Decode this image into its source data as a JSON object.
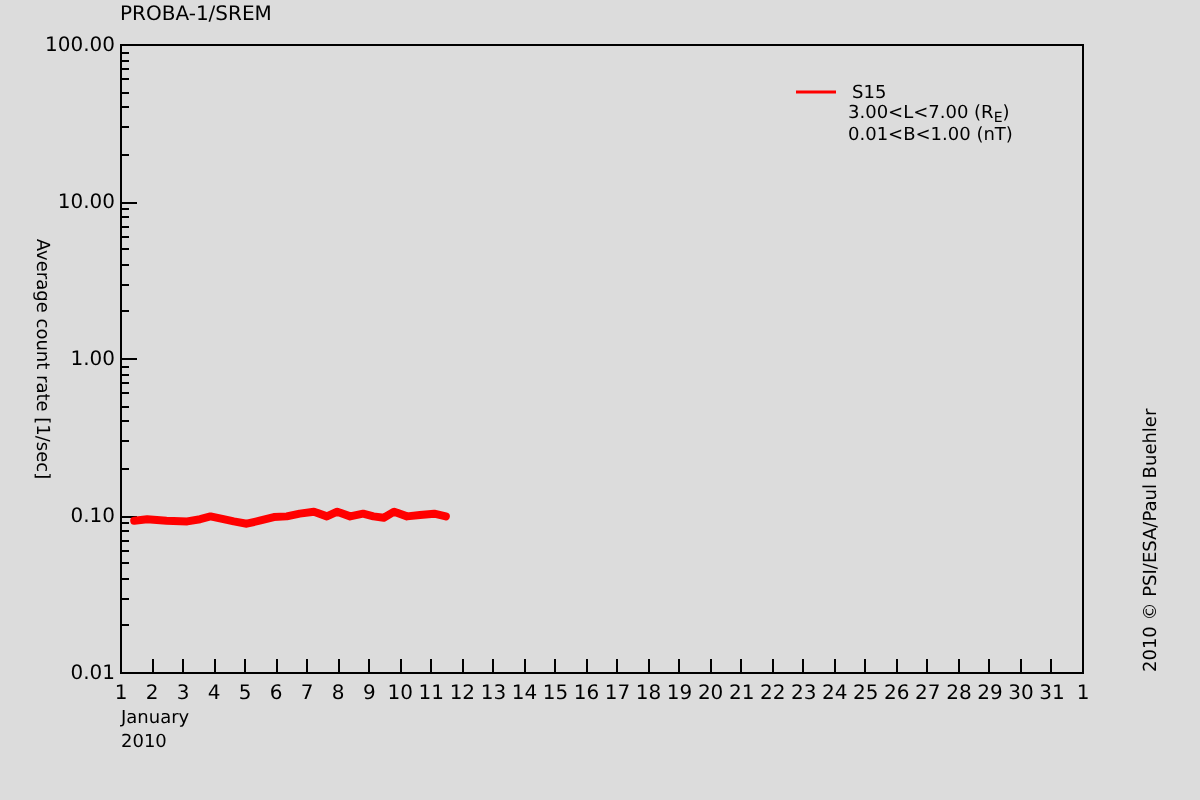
{
  "chart_data": {
    "type": "line",
    "title": "PROBA-1/SREM",
    "xlabel": "January\n2010",
    "ylabel": "Average count rate [1/sec]",
    "annotations": [
      "3.00<L<7.00 (R$_{E}$)",
      "0.01<B<1.00 (nT)",
      "2010 © PSI/ESA/Paul Buehler"
    ],
    "x": [
      "2010-01-01T11:00",
      "2010-01-01T21:00",
      "2010-01-02T12:00",
      "2010-01-03T04:00",
      "2010-01-03T14:00",
      "2010-01-03T22:00",
      "2010-01-04T08:00",
      "2010-01-04T16:00",
      "2010-01-05T02:00",
      "2010-01-05T12:00",
      "2010-01-05T23:00",
      "2010-01-06T09:00",
      "2010-01-06T19:00",
      "2010-01-07T06:00",
      "2010-01-07T16:00",
      "2010-01-08T00:00",
      "2010-01-08T10:00",
      "2010-01-08T20:00",
      "2010-01-09T04:00",
      "2010-01-09T12:00",
      "2010-01-09T20:00",
      "2010-01-10T06:00",
      "2010-01-10T16:00",
      "2010-01-11T03:00",
      "2010-01-11T12:00"
    ],
    "series": [
      {
        "name": "S15",
        "color": "#ff0000",
        "values": [
          0.092,
          0.094,
          0.092,
          0.091,
          0.094,
          0.098,
          0.094,
          0.091,
          0.088,
          0.092,
          0.097,
          0.098,
          0.102,
          0.105,
          0.098,
          0.105,
          0.098,
          0.102,
          0.098,
          0.096,
          0.105,
          0.098,
          0.1,
          0.102,
          0.098
        ]
      }
    ],
    "xlim": [
      "2010-01-01",
      "2010-02-01"
    ],
    "xticks": [
      {
        "value": "2010-01-01",
        "label": "1"
      },
      {
        "value": "2010-01-02",
        "label": "2"
      },
      {
        "value": "2010-01-03",
        "label": "3"
      },
      {
        "value": "2010-01-04",
        "label": "4"
      },
      {
        "value": "2010-01-05",
        "label": "5"
      },
      {
        "value": "2010-01-06",
        "label": "6"
      },
      {
        "value": "2010-01-07",
        "label": "7"
      },
      {
        "value": "2010-01-08",
        "label": "8"
      },
      {
        "value": "2010-01-09",
        "label": "9"
      },
      {
        "value": "2010-01-10",
        "label": "10"
      },
      {
        "value": "2010-01-11",
        "label": "11"
      },
      {
        "value": "2010-01-12",
        "label": "12"
      },
      {
        "value": "2010-01-13",
        "label": "13"
      },
      {
        "value": "2010-01-14",
        "label": "14"
      },
      {
        "value": "2010-01-15",
        "label": "15"
      },
      {
        "value": "2010-01-16",
        "label": "16"
      },
      {
        "value": "2010-01-17",
        "label": "17"
      },
      {
        "value": "2010-01-18",
        "label": "18"
      },
      {
        "value": "2010-01-19",
        "label": "19"
      },
      {
        "value": "2010-01-20",
        "label": "20"
      },
      {
        "value": "2010-01-21",
        "label": "21"
      },
      {
        "value": "2010-01-22",
        "label": "22"
      },
      {
        "value": "2010-01-23",
        "label": "23"
      },
      {
        "value": "2010-01-24",
        "label": "24"
      },
      {
        "value": "2010-01-25",
        "label": "25"
      },
      {
        "value": "2010-01-26",
        "label": "26"
      },
      {
        "value": "2010-01-27",
        "label": "27"
      },
      {
        "value": "2010-01-28",
        "label": "28"
      },
      {
        "value": "2010-01-29",
        "label": "29"
      },
      {
        "value": "2010-01-30",
        "label": "30"
      },
      {
        "value": "2010-01-31",
        "label": "31"
      },
      {
        "value": "2010-02-01",
        "label": "1"
      }
    ],
    "ylim": [
      0.01,
      100
    ],
    "yticks": [
      0.01,
      {
        "value": 0.02,
        "label": null
      },
      {
        "value": 0.03,
        "label": null
      },
      {
        "value": 0.04,
        "label": null
      },
      {
        "value": 0.05,
        "label": null
      },
      {
        "value": 0.06,
        "label": null
      },
      {
        "value": 0.07,
        "label": null
      },
      {
        "value": 0.08,
        "label": null
      },
      {
        "value": 0.09,
        "label": null
      },
      {
        "value": 0.1,
        "label": "0.10"
      },
      {
        "value": 0.2,
        "label": null
      },
      {
        "value": 0.3,
        "label": null
      },
      {
        "value": 0.4,
        "label": null
      },
      {
        "value": 0.5,
        "label": null
      },
      {
        "value": 0.6,
        "label": null
      },
      {
        "value": 0.7,
        "label": null
      },
      {
        "value": 0.8,
        "label": null
      },
      {
        "value": 0.9,
        "label": null
      },
      {
        "value": 1,
        "label": "1.00"
      },
      {
        "value": 2,
        "label": null
      },
      {
        "value": 3,
        "label": null
      },
      {
        "value": 4,
        "label": null
      },
      {
        "value": 5,
        "label": null
      },
      {
        "value": 6,
        "label": null
      },
      {
        "value": 7,
        "label": null
      },
      {
        "value": 8,
        "label": null
      },
      {
        "value": 9,
        "label": null
      },
      {
        "value": 10,
        "label": "10.00"
      },
      {
        "value": 20,
        "label": null
      },
      {
        "value": 30,
        "label": null
      },
      {
        "value": 40,
        "label": null
      },
      {
        "value": 50,
        "label": null
      },
      {
        "value": 60,
        "label": null
      },
      {
        "value": 70,
        "label": null
      },
      {
        "value": 80,
        "label": null
      },
      {
        "value": 90,
        "label": null
      },
      {
        "value": 100,
        "label": "100.00"
      }
    ],
    "log": true,
    "legend": "top right",
    "grid": false,
    "marker": "none",
    "line_style": "solid"
  }
}
